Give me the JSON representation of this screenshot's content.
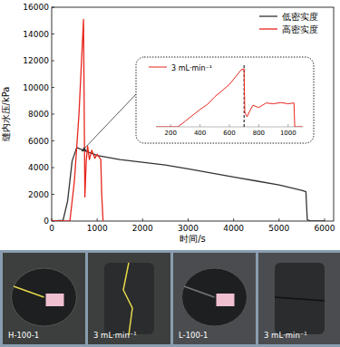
{
  "chart_data": [
    {
      "type": "line",
      "x_label": "时间/s",
      "y_label": "缝内水压/kPa",
      "xlim": [
        0,
        6200
      ],
      "xticks": [
        0,
        1000,
        2000,
        3000,
        4000,
        5000,
        6000
      ],
      "ylim": [
        0,
        16000
      ],
      "yticks": [
        0,
        2000,
        4000,
        6000,
        8000,
        10000,
        12000,
        14000,
        16000
      ],
      "grid": false,
      "legend": "upper right",
      "series": [
        {
          "name": "低密实度",
          "color": "#333333",
          "x": [
            0,
            250,
            350,
            450,
            550,
            700,
            1000,
            1500,
            2000,
            2500,
            3000,
            3500,
            4000,
            4500,
            5000,
            5500,
            5590,
            5620,
            5700,
            6000
          ],
          "values": [
            0,
            50,
            1500,
            4500,
            5500,
            5300,
            4900,
            4600,
            4400,
            4200,
            3900,
            3600,
            3300,
            3000,
            2700,
            2300,
            2200,
            100,
            0,
            0
          ]
        },
        {
          "name": "高密实度",
          "color": "#e8261e",
          "x": [
            0,
            400,
            500,
            600,
            700,
            730,
            760,
            790,
            830,
            880,
            950,
            1000,
            1080,
            1100,
            1130
          ],
          "values": [
            0,
            0,
            3000,
            8000,
            15100,
            1800,
            4500,
            5600,
            4600,
            5300,
            4700,
            5000,
            4600,
            2000,
            0
          ]
        }
      ]
    },
    {
      "type": "line",
      "xlim": [
        100,
        1100
      ],
      "xticks": [
        200,
        400,
        600,
        800,
        1000
      ],
      "ylim": [
        0,
        16000
      ],
      "tick_labels": "x",
      "grid": false,
      "legend": "upper left",
      "series": [
        {
          "name": "3 mL·min⁻¹",
          "color": "#e8261e",
          "x": [
            100,
            250,
            300,
            400,
            450,
            500,
            600,
            680,
            700,
            705,
            720,
            740,
            760,
            800,
            850,
            900,
            950,
            1000,
            1040,
            1045,
            1100
          ],
          "values": [
            0,
            0,
            1500,
            4500,
            5800,
            7800,
            11000,
            14800,
            15100,
            3800,
            2600,
            4200,
            5600,
            5000,
            6200,
            6000,
            6300,
            6000,
            6200,
            0,
            0
          ]
        }
      ],
      "reference_lines": [
        {
          "x": 700,
          "line_style": "dashed",
          "color": "#000000"
        }
      ]
    }
  ],
  "photos": [
    {
      "label": "H-100-1"
    },
    {
      "label": "3 mL·min⁻¹"
    },
    {
      "label": "L-100-1"
    },
    {
      "label": "3 mL·min⁻¹"
    }
  ]
}
